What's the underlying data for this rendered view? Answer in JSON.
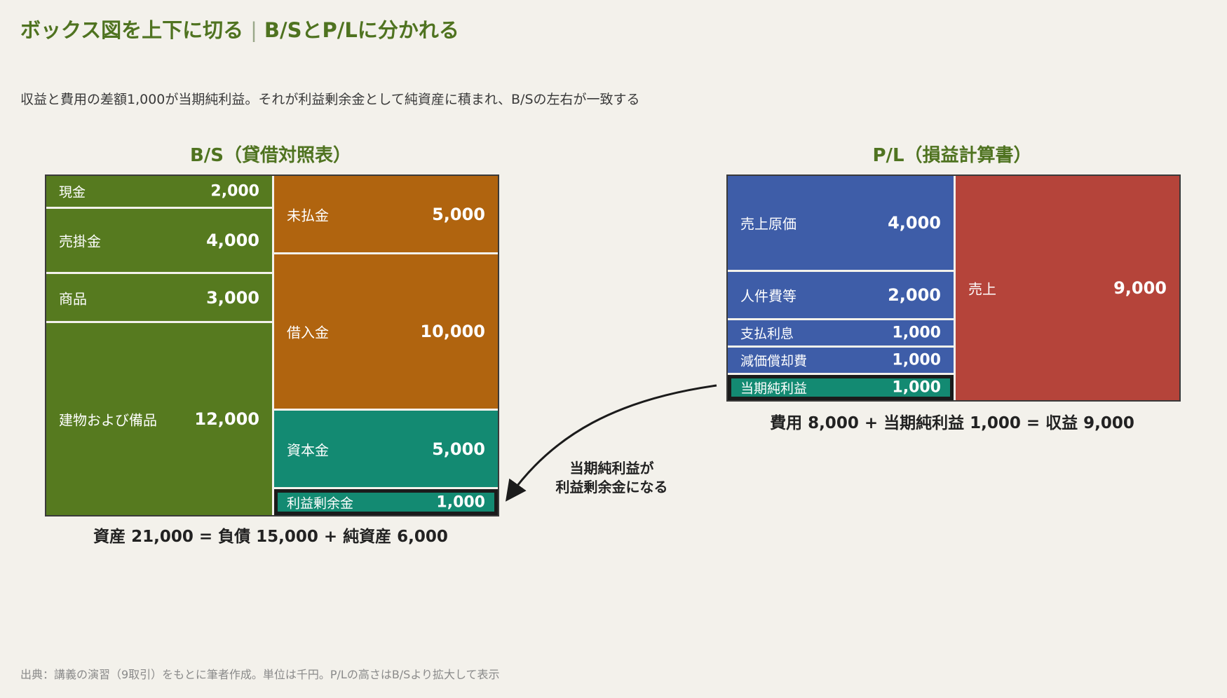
{
  "title": {
    "main": "ボックス図を上下に切る",
    "separator": "|",
    "sub": "B/SとP/Lに分かれる"
  },
  "subtitle": "収益と費用の差額1,000が当期純利益。それが利益剰余金として純資産に積まれ、B/Sの左右が一致する",
  "bs": {
    "heading": "B/S（貸借対照表）",
    "assets": [
      {
        "label": "現金",
        "value": "2,000"
      },
      {
        "label": "売掛金",
        "value": "4,000"
      },
      {
        "label": "商品",
        "value": "3,000"
      },
      {
        "label": "建物および備品",
        "value": "12,000"
      }
    ],
    "liabilities_equity": [
      {
        "label": "未払金",
        "value": "5,000"
      },
      {
        "label": "借入金",
        "value": "10,000"
      },
      {
        "label": "資本金",
        "value": "5,000"
      },
      {
        "label": "利益剰余金",
        "value": "1,000"
      }
    ],
    "equation": "資産 21,000 = 負債 15,000 + 純資産 6,000"
  },
  "pl": {
    "heading": "P/L（損益計算書）",
    "expenses": [
      {
        "label": "売上原価",
        "value": "4,000"
      },
      {
        "label": "人件費等",
        "value": "2,000"
      },
      {
        "label": "支払利息",
        "value": "1,000"
      },
      {
        "label": "減価償却費",
        "value": "1,000"
      },
      {
        "label": "当期純利益",
        "value": "1,000"
      }
    ],
    "revenue": {
      "label": "売上",
      "value": "9,000"
    },
    "equation": "費用 8,000 + 当期純利益 1,000 = 収益 9,000"
  },
  "arrow_note": {
    "line1": "当期純利益が",
    "line2": "利益剰余金になる"
  },
  "source": "出典：講義の演習（9取引）をもとに筆者作成。単位は千円。P/Lの高さはB/Sより拡大して表示",
  "colors": {
    "asset": "#567a1f",
    "liability": "#b0640f",
    "equity": "#138a72",
    "expense": "#3e5da8",
    "revenue": "#b5443a",
    "title": "#4f7320"
  }
}
